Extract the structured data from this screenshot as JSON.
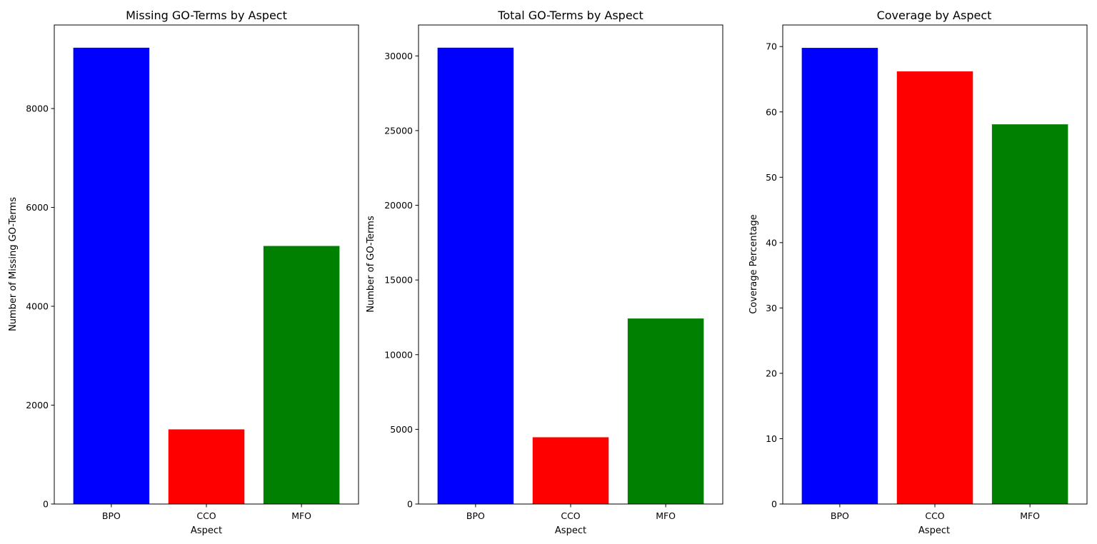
{
  "chart_data": [
    {
      "type": "bar",
      "title": "Missing GO-Terms by Aspect",
      "xlabel": "Aspect",
      "ylabel": "Number of Missing GO-Terms",
      "categories": [
        "BPO",
        "CCO",
        "MFO"
      ],
      "values": [
        9230,
        1510,
        5220
      ],
      "colors": [
        "#0000ff",
        "#ff0000",
        "#008000"
      ],
      "ylim": [
        0,
        9690
      ],
      "yticks": [
        0,
        2000,
        4000,
        6000,
        8000
      ],
      "ytick_labels": [
        "0",
        "2000",
        "4000",
        "6000",
        "8000"
      ],
      "grid": false,
      "legend": "none"
    },
    {
      "type": "bar",
      "title": "Total GO-Terms by Aspect",
      "xlabel": "Aspect",
      "ylabel": "Number of GO-Terms",
      "categories": [
        "BPO",
        "CCO",
        "MFO"
      ],
      "values": [
        30550,
        4470,
        12420
      ],
      "colors": [
        "#0000ff",
        "#ff0000",
        "#008000"
      ],
      "ylim": [
        0,
        32070
      ],
      "yticks": [
        0,
        5000,
        10000,
        15000,
        20000,
        25000,
        30000
      ],
      "ytick_labels": [
        "0",
        "5000",
        "10000",
        "15000",
        "20000",
        "25000",
        "30000"
      ],
      "grid": false,
      "legend": "none"
    },
    {
      "type": "bar",
      "title": "Coverage by Aspect",
      "xlabel": "Aspect",
      "ylabel": "Coverage Percentage",
      "categories": [
        "BPO",
        "CCO",
        "MFO"
      ],
      "values": [
        69.8,
        66.2,
        58.1
      ],
      "colors": [
        "#0000ff",
        "#ff0000",
        "#008000"
      ],
      "ylim": [
        0,
        73.3
      ],
      "yticks": [
        0,
        10,
        20,
        30,
        40,
        50,
        60,
        70
      ],
      "ytick_labels": [
        "0",
        "10",
        "20",
        "30",
        "40",
        "50",
        "60",
        "70"
      ],
      "grid": false,
      "legend": "none"
    }
  ]
}
